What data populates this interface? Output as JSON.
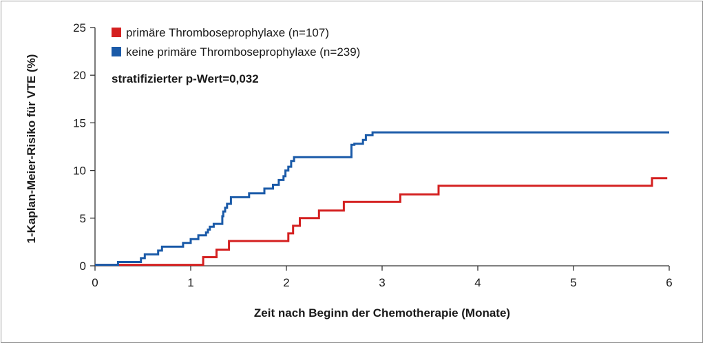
{
  "chart_data": {
    "type": "line",
    "step": true,
    "title": "",
    "xlabel": "Zeit nach Beginn der Chemotherapie (Monate)",
    "ylabel": "1-Kaplan-Meier-Risiko für VTE (%)",
    "xlim": [
      0,
      6
    ],
    "ylim": [
      0,
      25
    ],
    "xticks": [
      0,
      1,
      2,
      3,
      4,
      5,
      6
    ],
    "yticks": [
      0,
      5,
      10,
      15,
      20,
      25
    ],
    "grid": false,
    "legend_position": "top-left",
    "annotation": "stratifizierter p-Wert=0,032",
    "series": [
      {
        "name": "primäre Thromboseprophylaxe (n=107)",
        "color": "#d42020",
        "x": [
          0,
          1.13,
          1.27,
          1.4,
          2.02,
          2.07,
          2.14,
          2.34,
          2.6,
          3.19,
          3.59,
          5.82,
          5.98
        ],
        "y": [
          0.1,
          0.9,
          1.7,
          2.6,
          3.4,
          4.2,
          5.0,
          5.8,
          6.7,
          7.5,
          8.4,
          9.2,
          9.2
        ]
      },
      {
        "name": "keine primäre Thromboseprophylaxe (n=239)",
        "color": "#1a5aa8",
        "x": [
          0,
          0.24,
          0.48,
          0.52,
          0.66,
          0.7,
          0.92,
          1.0,
          1.08,
          1.16,
          1.18,
          1.2,
          1.24,
          1.33,
          1.34,
          1.36,
          1.38,
          1.42,
          1.61,
          1.77,
          1.86,
          1.92,
          1.97,
          1.99,
          2.02,
          2.05,
          2.08,
          2.68,
          2.71,
          2.8,
          2.83,
          2.9,
          6.0
        ],
        "y": [
          0.1,
          0.4,
          0.8,
          1.2,
          1.6,
          2.0,
          2.4,
          2.8,
          3.2,
          3.5,
          3.8,
          4.1,
          4.4,
          5.2,
          5.7,
          6.1,
          6.5,
          7.2,
          7.6,
          8.1,
          8.5,
          9.0,
          9.4,
          10.0,
          10.4,
          11.0,
          11.4,
          12.7,
          12.8,
          13.2,
          13.7,
          14.0,
          14.0
        ]
      }
    ]
  }
}
